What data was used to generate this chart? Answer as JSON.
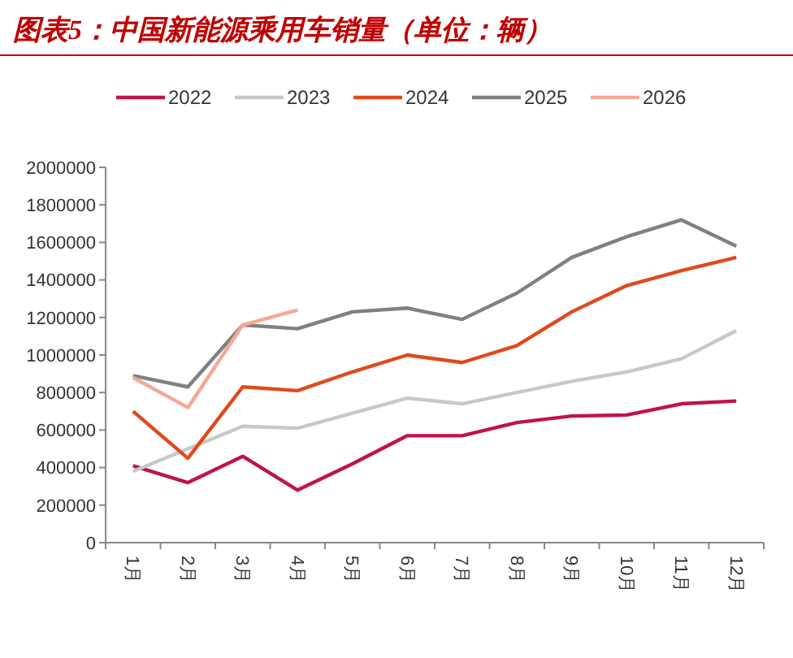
{
  "chart_data": {
    "type": "line",
    "title": "图表5：中国新能源乘用车销量（单位：辆）",
    "categories": [
      "1月",
      "2月",
      "3月",
      "4月",
      "5月",
      "6月",
      "7月",
      "8月",
      "9月",
      "10月",
      "11月",
      "12月"
    ],
    "series": [
      {
        "name": "2022",
        "color": "#c0134a",
        "values": [
          410000,
          320000,
          460000,
          280000,
          420000,
          570000,
          570000,
          640000,
          675000,
          680000,
          740000,
          755000
        ]
      },
      {
        "name": "2023",
        "color": "#c8c8c8",
        "values": [
          380000,
          500000,
          620000,
          610000,
          690000,
          770000,
          740000,
          800000,
          860000,
          910000,
          980000,
          1130000
        ]
      },
      {
        "name": "2024",
        "color": "#e0491c",
        "values": [
          700000,
          450000,
          830000,
          810000,
          910000,
          1000000,
          960000,
          1050000,
          1230000,
          1370000,
          1450000,
          1520000
        ]
      },
      {
        "name": "2025",
        "color": "#808080",
        "values": [
          890000,
          830000,
          1160000,
          1140000,
          1230000,
          1250000,
          1190000,
          1330000,
          1520000,
          1630000,
          1720000,
          1580000
        ]
      },
      {
        "name": "2026",
        "color": "#f4a896",
        "values": [
          880000,
          720000,
          1160000,
          1240000,
          null,
          null,
          null,
          null,
          null,
          null,
          null,
          null
        ]
      }
    ],
    "ylim": [
      0,
      2000000
    ],
    "yticks": [
      0,
      200000,
      400000,
      600000,
      800000,
      1000000,
      1200000,
      1400000,
      1600000,
      1800000,
      2000000
    ],
    "legend": "top",
    "grid": false,
    "marker": "none",
    "line_style": "solid"
  }
}
